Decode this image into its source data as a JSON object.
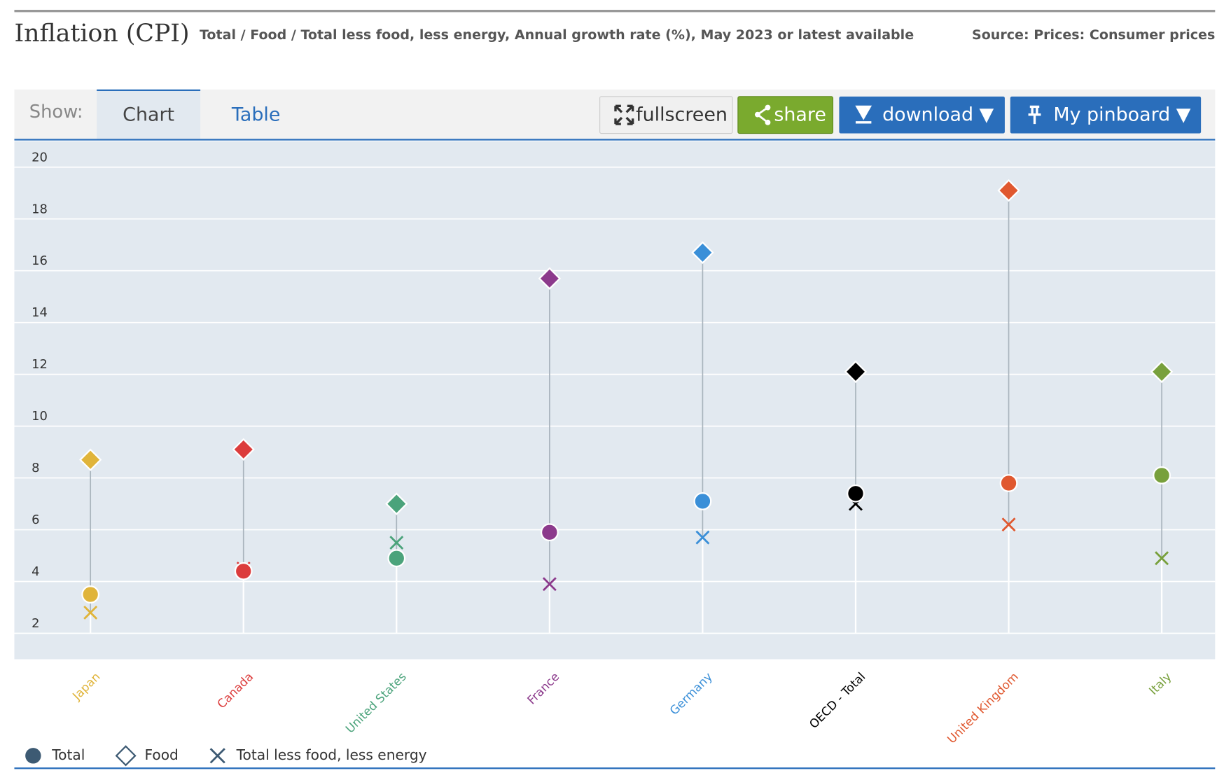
{
  "header": {
    "title": "Inflation (CPI)",
    "subtitle": "Total / Food / Total less food, less energy, Annual growth rate (%), May 2023 or latest available",
    "source": "Source: Prices: Consumer prices"
  },
  "toolbar": {
    "show_label": "Show:",
    "tabs": [
      "Chart",
      "Table"
    ],
    "buttons": [
      "fullscreen",
      "share",
      "download ▼",
      "My pinboard ▼"
    ]
  },
  "chart_data": {
    "type": "dot",
    "categories": [
      "Japan",
      "Canada",
      "United States",
      "France",
      "Germany",
      "OECD - Total",
      "United Kingdom",
      "Italy"
    ],
    "category_colors": [
      "#e0b43a",
      "#dc3c3c",
      "#4ba37b",
      "#8c3a8c",
      "#3a8fd8",
      "#000000",
      "#e0582f",
      "#78a03c"
    ],
    "legend_color": "#3d5a73",
    "series": [
      {
        "name": "Total",
        "marker": "circle",
        "values": [
          3.5,
          4.4,
          4.9,
          5.9,
          7.1,
          7.4,
          7.8,
          8.1
        ]
      },
      {
        "name": "Food",
        "marker": "diamond",
        "values": [
          8.7,
          9.1,
          7.0,
          15.7,
          16.7,
          12.1,
          19.1,
          12.1
        ]
      },
      {
        "name": "Total less food, less energy",
        "marker": "cross",
        "values": [
          2.8,
          4.5,
          5.5,
          3.9,
          5.7,
          7.0,
          6.2,
          4.9
        ]
      }
    ],
    "ylim": [
      1,
      21
    ],
    "yticks": [
      2,
      4,
      6,
      8,
      10,
      12,
      14,
      16,
      18,
      20
    ],
    "grid": true
  }
}
